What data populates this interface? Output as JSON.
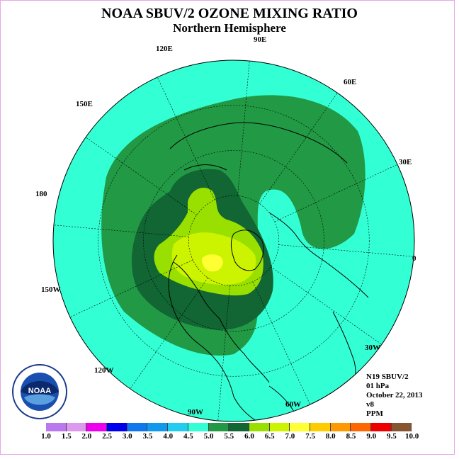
{
  "header": {
    "title": "NOAA SBUV/2 OZONE MIXING RATIO",
    "subtitle": "Northern Hemisphere"
  },
  "map": {
    "longitude_labels": [
      "90E",
      "60E",
      "30E",
      "0",
      "30W",
      "60W",
      "90W",
      "120W",
      "150W",
      "180",
      "150E",
      "120E"
    ],
    "ocean_color": "#33ffd5",
    "contour_colors": {
      "5.0-5.5": "#229944",
      "5.5-6.0": "#116633",
      "6.0-6.5": "#99e000",
      "6.5-7.0": "#ccf400",
      "7.0-7.5": "#ffff33"
    }
  },
  "info": {
    "satellite": "N19 SBUV/2",
    "level": "01 hPa",
    "date": "October 22, 2013",
    "version": "v8",
    "units": "PPM"
  },
  "colorbar": {
    "ticks": [
      "1.0",
      "1.5",
      "2.0",
      "2.5",
      "3.0",
      "3.5",
      "4.0",
      "4.5",
      "5.0",
      "5.5",
      "6.0",
      "6.5",
      "7.0",
      "7.5",
      "8.0",
      "8.5",
      "9.0",
      "9.5",
      "10.0"
    ],
    "colors": [
      "#bb77ee",
      "#dd99ee",
      "#ee00ee",
      "#0000ee",
      "#1177ee",
      "#1199ee",
      "#22ccee",
      "#33ffd5",
      "#229944",
      "#116633",
      "#99e000",
      "#ccf400",
      "#ffff33",
      "#ffcc00",
      "#ff9900",
      "#ff6600",
      "#ee0000",
      "#885533"
    ]
  },
  "logo": {
    "text": "NOAA",
    "ring_text": "NATIONAL OCEANIC AND ATMOSPHERIC ADMINISTRATION · U.S. DEPARTMENT OF COMMERCE"
  }
}
